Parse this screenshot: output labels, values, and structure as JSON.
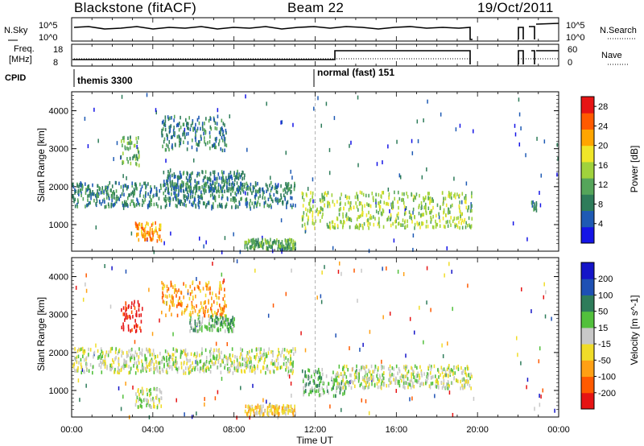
{
  "header": {
    "station": "Blackstone (fitACF)",
    "beam": "Beam 22",
    "date": "19/Oct/2011"
  },
  "top_panels": {
    "nsky_label": "N.Sky",
    "nsearch_label": "N.Search",
    "noise_ticks": [
      "10^5",
      "10^0"
    ],
    "freq_label_1": "Freq.",
    "freq_label_2": "[MHz]",
    "freq_ticks": [
      "18",
      "8"
    ],
    "nave_label": "Nave",
    "nave_ticks": [
      "60",
      "0"
    ],
    "cpid_label": "CPID",
    "cpid_modes": [
      {
        "name": "themis 3300",
        "start": 0,
        "end": 12
      },
      {
        "name": "normal (fast) 151",
        "start": 12,
        "end": 24
      }
    ]
  },
  "chart_data": [
    {
      "type": "heatmap",
      "title": "",
      "ylabel": "Slant Range [km]",
      "xlabel": "Time UT",
      "xlim": [
        0,
        24
      ],
      "ylim": [
        300,
        4500
      ],
      "yticks": [
        "1000",
        "2000",
        "3000",
        "4000"
      ],
      "colorbar": {
        "label": "Power [dB]",
        "ticks": [
          "4",
          "8",
          "12",
          "16",
          "20",
          "24",
          "28"
        ],
        "range": [
          0,
          30
        ],
        "colors": [
          "#1414e6",
          "#1e5ab4",
          "#2e7c5a",
          "#55a55a",
          "#a0d23c",
          "#f0e628",
          "#ffa500",
          "#ff5a00",
          "#e61414"
        ]
      },
      "echo_bands": [
        {
          "t_start": 0.0,
          "t_end": 11.0,
          "range_start": 1500,
          "range_end": 2150,
          "level": 8
        },
        {
          "t_start": 2.4,
          "t_end": 3.3,
          "range_start": 2600,
          "range_end": 3350,
          "level": 10
        },
        {
          "t_start": 3.1,
          "t_end": 4.4,
          "range_start": 600,
          "range_end": 1100,
          "level": 22
        },
        {
          "t_start": 4.4,
          "t_end": 7.6,
          "range_start": 3000,
          "range_end": 3900,
          "level": 9
        },
        {
          "t_start": 4.5,
          "t_end": 8.5,
          "range_start": 1900,
          "range_end": 2450,
          "level": 8
        },
        {
          "t_start": 8.5,
          "t_end": 11.0,
          "range_start": 400,
          "range_end": 650,
          "level": 10
        },
        {
          "t_start": 11.3,
          "t_end": 19.7,
          "range_start": 950,
          "range_end": 1900,
          "level": 14
        },
        {
          "t_start": 22.6,
          "t_end": 22.9,
          "range_start": 1400,
          "range_end": 1650,
          "level": 8
        }
      ]
    },
    {
      "type": "heatmap",
      "title": "",
      "ylabel": "Slant Range [km]",
      "xlabel": "Time UT",
      "xlim": [
        0,
        24
      ],
      "ylim": [
        300,
        4500
      ],
      "yticks": [
        "1000",
        "2000",
        "3000",
        "4000"
      ],
      "colorbar": {
        "label": "Velocity [m s^-1]",
        "ticks": [
          "200",
          "100",
          "50",
          "15",
          "-15",
          "-50",
          "-100",
          "-200"
        ],
        "colors": [
          "#1414c8",
          "#1e50b4",
          "#2e7c5a",
          "#52c03c",
          "#c8c8c8",
          "#f0dc28",
          "#ffa014",
          "#ff5a00",
          "#e61414"
        ]
      },
      "echo_bands": [
        {
          "t_start": 0.0,
          "t_end": 11.0,
          "range_start": 1500,
          "range_end": 2150,
          "level": "-15..15"
        },
        {
          "t_start": 2.4,
          "t_end": 3.4,
          "range_start": 2600,
          "range_end": 3400,
          "level": "-200"
        },
        {
          "t_start": 3.1,
          "t_end": 4.4,
          "range_start": 600,
          "range_end": 1100,
          "level": "-15..15"
        },
        {
          "t_start": 4.4,
          "t_end": 7.6,
          "range_start": 3000,
          "range_end": 3900,
          "level": "-100"
        },
        {
          "t_start": 5.8,
          "t_end": 8.0,
          "range_start": 2600,
          "range_end": 3000,
          "level": "50"
        },
        {
          "t_start": 8.5,
          "t_end": 11.0,
          "range_start": 400,
          "range_end": 650,
          "level": "-50"
        },
        {
          "t_start": 11.3,
          "t_end": 13.5,
          "range_start": 900,
          "range_end": 1600,
          "level": "50"
        },
        {
          "t_start": 13.0,
          "t_end": 19.7,
          "range_start": 1100,
          "range_end": 1700,
          "level": "-15..15"
        }
      ]
    }
  ],
  "time_axis": {
    "ticks": [
      "00:00",
      "04:00",
      "08:00",
      "12:00",
      "16:00",
      "20:00",
      "00:00"
    ],
    "label": "Time UT"
  }
}
